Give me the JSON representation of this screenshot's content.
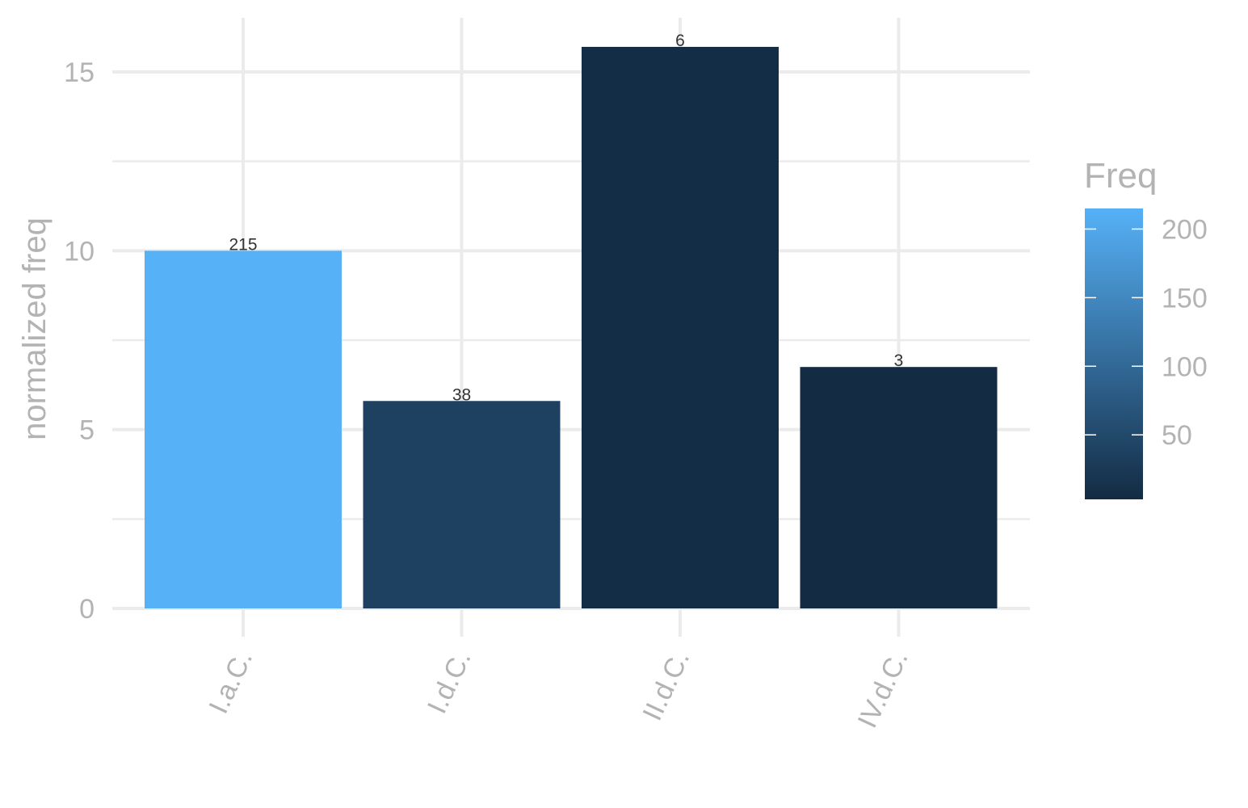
{
  "chart_data": {
    "type": "bar",
    "categories": [
      "I.a.C.",
      "I.d.C.",
      "II.d.C.",
      "IV.d.C."
    ],
    "values": [
      10.0,
      5.8,
      15.7,
      6.75
    ],
    "fill_values": [
      215,
      38,
      6,
      3
    ],
    "bar_labels": [
      "215",
      "38",
      "6",
      "3"
    ],
    "xlabel": "",
    "ylabel": "normalized freq",
    "ylim": [
      0,
      16.5
    ],
    "y_ticks": [
      0,
      5,
      10,
      15
    ],
    "y_tick_labels": [
      "0",
      "5",
      "10",
      "15"
    ],
    "grid": true,
    "legend": {
      "title": "Freq",
      "placement": "right",
      "range": [
        3,
        215
      ],
      "ticks": [
        50,
        100,
        150,
        200
      ],
      "tick_labels": [
        "50",
        "100",
        "150",
        "200"
      ],
      "color_low": "#132B43",
      "color_high": "#56B1F7"
    }
  }
}
